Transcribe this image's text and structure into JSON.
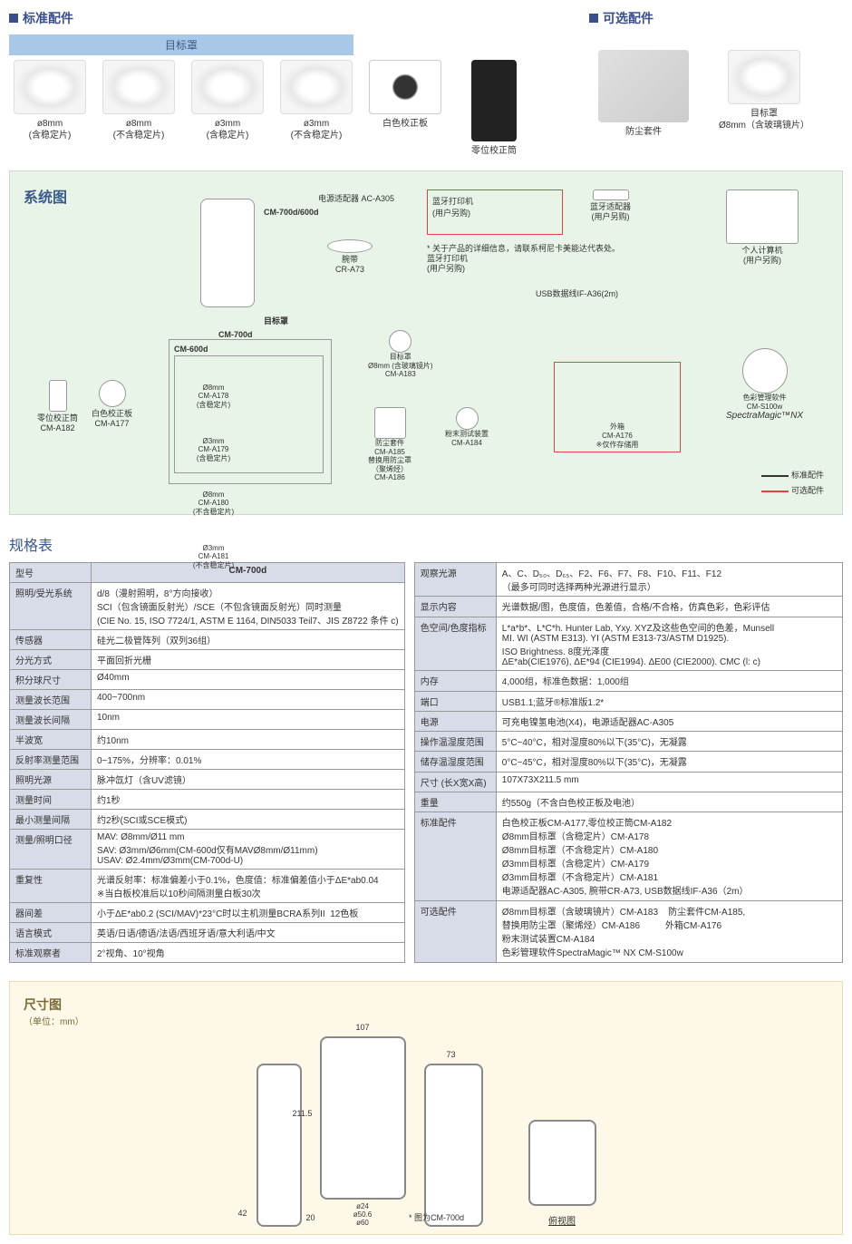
{
  "sections": {
    "standard_acc": "标准配件",
    "optional_acc": "可选配件",
    "target_mask": "目标罩",
    "system_diagram": "系统图",
    "spec_table": "规格表",
    "dimensions": "尺寸图",
    "dim_unit": "（单位：mm）"
  },
  "standard_items": [
    {
      "line1": "ø8mm",
      "line2": "(含稳定片)"
    },
    {
      "line1": "ø8mm",
      "line2": "(不含稳定片)"
    },
    {
      "line1": "ø3mm",
      "line2": "(含稳定片)"
    },
    {
      "line1": "ø3mm",
      "line2": "(不含稳定片)"
    },
    {
      "line1": "白色校正板",
      "line2": ""
    },
    {
      "line1": "零位校正筒",
      "line2": ""
    }
  ],
  "optional_items": [
    {
      "line1": "防尘套件",
      "line2": ""
    },
    {
      "line1": "目标罩",
      "line2": "Ø8mm（含玻璃镜片）"
    }
  ],
  "system": {
    "main_device": "CM-700d/600d",
    "power_adapter": "电源适配器 AC-A305",
    "wrist_strap": "腕带\nCR-A73",
    "bt_printer": "蓝牙打印机\n(用户另购)",
    "bt_adapter": "蓝牙适配器\n(用户另购)",
    "pc": "个人计算机\n(用户另购)",
    "usb_cable": "USB数据线IF-A36(2m)",
    "note": "* 关于产品的详细信息，请联系柯尼卡美能达代表处。\n蓝牙打印机\n(用户另购)",
    "cm700d_label": "CM-700d",
    "cm600d_label": "CM-600d",
    "target_mask_label": "目标罩",
    "zero_tube": "零位校正筒\nCM-A182",
    "white_plate": "白色校正板\nCM-A177",
    "mask_8_stable": "Ø8mm\nCM-A178\n(含稳定片)",
    "mask_3_stable": "Ø3mm\nCM-A179\n(含稳定片)",
    "mask_8_nostable": "Ø8mm\nCM-A180\n(不含稳定片)",
    "mask_3_nostable": "Ø3mm\nCM-A181\n(不含稳定片)",
    "mask_8_glass": "目标罩\nØ8mm (含玻璃镜片)\nCM-A183",
    "dust_kit": "防尘套件\nCM-A185\n替换用防尘罩\n（聚烯烃）\nCM-A186",
    "powder_test": "粉末测试装置\nCM-A184",
    "outer_box": "外箱\nCM-A176\n※仅作存储用",
    "software": "色彩管理软件\nCM-S100w",
    "software_name": "SpectraMagic™NX",
    "legend_std": "标准配件",
    "legend_opt": "可选配件"
  },
  "spec_left": [
    {
      "label": "型号",
      "value": "CM-700d",
      "header": true
    },
    {
      "label": "照明/受光系统",
      "value": "d/8（漫射照明，8°方向接收）\nSCI（包含镜面反射光）/SCE（不包含镜面反射光）同时测量\n(CIE No. 15, ISO 7724/1, ASTM E 1164, DIN5033 Teil7、JIS Z8722 条件 c)"
    },
    {
      "label": "传感器",
      "value": "硅光二极管阵列（双列36组）"
    },
    {
      "label": "分光方式",
      "value": "平面回折光栅"
    },
    {
      "label": "积分球尺寸",
      "value": "Ø40mm"
    },
    {
      "label": "测量波长范围",
      "value": "400~700nm"
    },
    {
      "label": "测量波长间隔",
      "value": "10nm"
    },
    {
      "label": "半波宽",
      "value": "约10nm"
    },
    {
      "label": "反射率测量范围",
      "value": "0~175%，分辨率：0.01%"
    },
    {
      "label": "照明光源",
      "value": "脉冲氙灯（含UV滤镜）"
    },
    {
      "label": "测量时间",
      "value": "约1秒"
    },
    {
      "label": "最小测量间隔",
      "value": "约2秒(SCI或SCE模式)"
    },
    {
      "label": "测量/照明口径",
      "value": "MAV: Ø8mm/Ø11 mm\nSAV: Ø3mm/Ø6mm(CM-600d仅有MAVØ8mm/Ø11mm)\nUSAV: Ø2.4mm/Ø3mm(CM-700d-U)"
    },
    {
      "label": "重复性",
      "value": "光谱反射率：标准偏差小于0.1%，色度值：标准偏差值小于ΔE*ab0.04\n※当白板校准后以10秒间隔测量白板30次"
    },
    {
      "label": "器间差",
      "value": "小于ΔE*ab0.2 (SCI/MAV)*23°C时以主机测量BCRA系列II  12色板"
    },
    {
      "label": "语言模式",
      "value": "英语/日语/德语/法语/西班牙语/意大利语/中文"
    },
    {
      "label": "标准观察者",
      "value": "2°视角、10°视角"
    }
  ],
  "spec_right": [
    {
      "label": "观察光源",
      "value": "A、C、D₅₀、D₆₅、F2、F6、F7、F8、F10、F11、F12\n（最多可同时选择两种光源进行显示）"
    },
    {
      "label": "显示内容",
      "value": "光谱数据/图，色度值，色差值，合格/不合格，仿真色彩，色彩评估"
    },
    {
      "label": "色空间/色度指标",
      "value": "L*a*b*、L*C*h. Hunter Lab, Yxy. XYZ及这些色空间的色差，Munsell\nMI. WI (ASTM E313). YI (ASTM E313-73/ASTM D1925).\nISO Brightness. 8度光泽度\nΔE*ab(CIE1976), ΔE*94 (CIE1994). ΔE00 (CIE2000). CMC (l: c)"
    },
    {
      "label": "内存",
      "value": "4,000组，标准色数据：1,000组"
    },
    {
      "label": "端口",
      "value": "USB1.1;蓝牙®标准版1.2*"
    },
    {
      "label": "电源",
      "value": "可充电镍氢电池(X4)，电源适配器AC-A305"
    },
    {
      "label": "操作温湿度范围",
      "value": "5°C~40°C，相对湿度80%以下(35°C)，无凝露"
    },
    {
      "label": "储存温湿度范围",
      "value": "0°C~45°C，相对湿度80%以下(35°C)，无凝露"
    },
    {
      "label": "尺寸 (长X宽X高)",
      "value": "107X73X211.5 mm"
    },
    {
      "label": "重量",
      "value": "约550g（不含白色校正板及电池）"
    },
    {
      "label": "标准配件",
      "value": "白色校正板CM-A177,零位校正筒CM-A182\nØ8mm目标罩（含稳定片）CM-A178\nØ8mm目标罩（不含稳定片）CM-A180\nØ3mm目标罩（含稳定片）CM-A179\nØ3mm目标罩（不含稳定片）CM-A181\n电源适配器AC-A305, 腕带CR-A73, USB数据线IF-A36（2m）"
    },
    {
      "label": "可选配件",
      "value": "Ø8mm目标罩（含玻璃镜片）CM-A183    防尘套件CM-A185,\n替换用防尘罩（聚烯烃）CM-A186          外箱CM-A176\n粉末测试装置CM-A184\n色彩管理软件SpectraMagic™ NX CM-S100w"
    }
  ],
  "dimensions": {
    "width": "107",
    "depth": "73",
    "height": "211.5",
    "base_height": "42",
    "base_offset": "20",
    "aperture_inner": "ø24",
    "aperture_mid": "ø50.6",
    "aperture_outer": "ø60",
    "top_view": "俯视图",
    "note": "* 图为CM-700d"
  },
  "colors": {
    "section_blue": "#3a4e8a",
    "diagram_bg": "#e8f4e8",
    "dim_bg": "#fef8e8",
    "table_label_bg": "#d8dce8",
    "red_border": "#d44444"
  }
}
